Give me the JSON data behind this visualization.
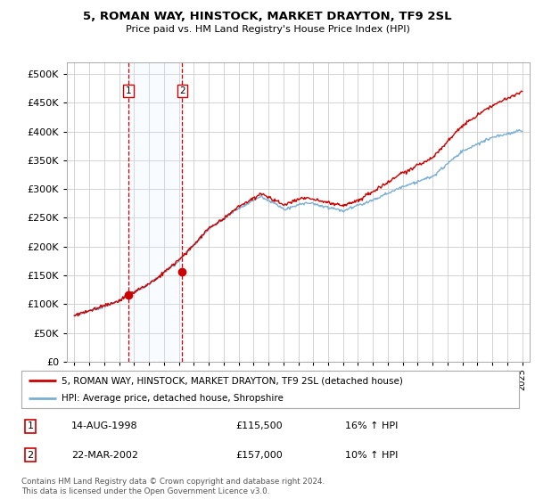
{
  "title": "5, ROMAN WAY, HINSTOCK, MARKET DRAYTON, TF9 2SL",
  "subtitle": "Price paid vs. HM Land Registry's House Price Index (HPI)",
  "legend_line1": "5, ROMAN WAY, HINSTOCK, MARKET DRAYTON, TF9 2SL (detached house)",
  "legend_line2": "HPI: Average price, detached house, Shropshire",
  "sale1_date": "14-AUG-1998",
  "sale1_price": "£115,500",
  "sale1_hpi": "16% ↑ HPI",
  "sale2_date": "22-MAR-2002",
  "sale2_price": "£157,000",
  "sale2_hpi": "10% ↑ HPI",
  "sale1_year": 1998.62,
  "sale1_value": 115500,
  "sale2_year": 2002.22,
  "sale2_value": 157000,
  "red_color": "#cc0000",
  "blue_color": "#7aafd4",
  "background_color": "#ffffff",
  "grid_color": "#cccccc",
  "shade_color": "#ddeeff",
  "footer": "Contains HM Land Registry data © Crown copyright and database right 2024.\nThis data is licensed under the Open Government Licence v3.0.",
  "ylim": [
    0,
    520000
  ],
  "yticks": [
    0,
    50000,
    100000,
    150000,
    200000,
    250000,
    300000,
    350000,
    400000,
    450000,
    500000
  ],
  "xmin": 1994.5,
  "xmax": 2025.5
}
